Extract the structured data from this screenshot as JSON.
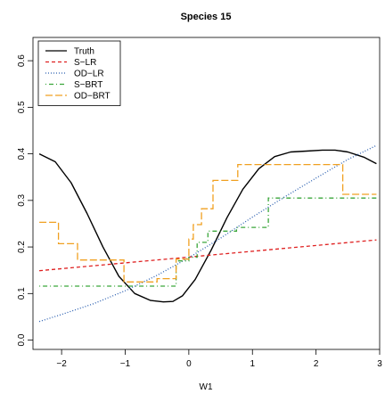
{
  "chart_data": {
    "type": "line",
    "title": "Species 15",
    "xlabel": "W1",
    "ylabel": "",
    "xlim": [
      -2.45,
      3.0
    ],
    "ylim": [
      -0.02,
      0.65
    ],
    "xticks": [
      "−2",
      "−1",
      "0",
      "1",
      "2",
      "3"
    ],
    "xtick_values": [
      -2,
      -1,
      0,
      1,
      2,
      3
    ],
    "yticks": [
      "0.0",
      "0.1",
      "0.2",
      "0.3",
      "0.4",
      "0.5",
      "0.6"
    ],
    "ytick_values": [
      0.0,
      0.1,
      0.2,
      0.3,
      0.4,
      0.5,
      0.6
    ],
    "grid": false,
    "legend_position": "top-left",
    "series": [
      {
        "name": "Truth",
        "color": "#000000",
        "style": "solid",
        "x": [
          -2.35,
          -2.1,
          -1.85,
          -1.6,
          -1.35,
          -1.1,
          -0.85,
          -0.6,
          -0.4,
          -0.25,
          -0.1,
          0.1,
          0.35,
          0.6,
          0.85,
          1.1,
          1.35,
          1.6,
          1.85,
          2.1,
          2.3,
          2.5,
          2.75,
          2.95
        ],
        "y": [
          0.4,
          0.383,
          0.338,
          0.272,
          0.2,
          0.137,
          0.1,
          0.085,
          0.082,
          0.083,
          0.095,
          0.13,
          0.193,
          0.263,
          0.324,
          0.368,
          0.394,
          0.404,
          0.406,
          0.408,
          0.408,
          0.404,
          0.393,
          0.379
        ]
      },
      {
        "name": "S−LR",
        "color": "#df2020",
        "style": "dashed",
        "x": [
          -2.35,
          2.95
        ],
        "y": [
          0.149,
          0.215
        ]
      },
      {
        "name": "OD−LR",
        "color": "#2a5fb0",
        "style": "dotted",
        "x": [
          -2.35,
          -2.0,
          -1.5,
          -1.0,
          -0.5,
          0.0,
          0.5,
          1.0,
          1.5,
          2.0,
          2.5,
          2.95
        ],
        "y": [
          0.04,
          0.055,
          0.078,
          0.106,
          0.139,
          0.177,
          0.219,
          0.264,
          0.307,
          0.348,
          0.388,
          0.418
        ]
      },
      {
        "name": "S−BRT",
        "color": "#3aa63a",
        "style": "dotdash",
        "x": [
          -2.35,
          -0.2,
          -0.2,
          0.0,
          0.0,
          0.13,
          0.13,
          0.3,
          0.3,
          0.75,
          0.75,
          1.25,
          1.25,
          2.95
        ],
        "y": [
          0.116,
          0.116,
          0.17,
          0.17,
          0.178,
          0.178,
          0.21,
          0.21,
          0.234,
          0.234,
          0.242,
          0.242,
          0.305,
          0.305
        ]
      },
      {
        "name": "OD−BRT",
        "color": "#f0a020",
        "style": "longdash",
        "x": [
          -2.35,
          -2.05,
          -2.05,
          -1.75,
          -1.75,
          -1.02,
          -1.02,
          -0.5,
          -0.5,
          -0.2,
          -0.2,
          0.0,
          0.0,
          0.07,
          0.07,
          0.2,
          0.2,
          0.38,
          0.38,
          0.77,
          0.77,
          2.42,
          2.42,
          2.95
        ],
        "y": [
          0.253,
          0.253,
          0.207,
          0.207,
          0.172,
          0.172,
          0.125,
          0.125,
          0.132,
          0.132,
          0.174,
          0.174,
          0.217,
          0.217,
          0.248,
          0.248,
          0.282,
          0.282,
          0.343,
          0.343,
          0.377,
          0.377,
          0.313,
          0.313
        ]
      }
    ]
  }
}
